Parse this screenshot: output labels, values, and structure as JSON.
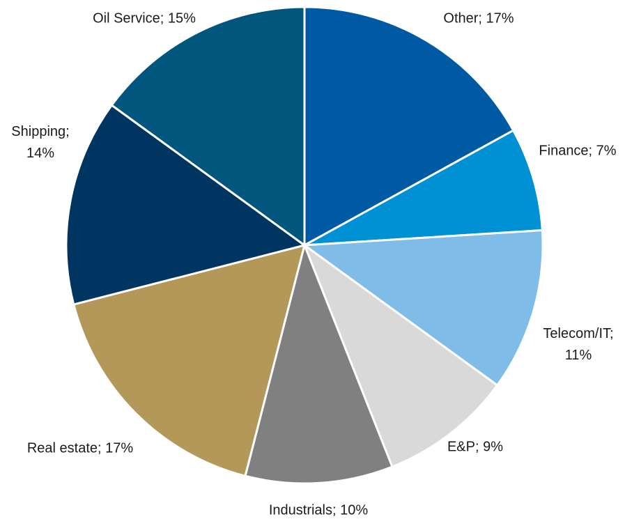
{
  "chart_data": {
    "type": "pie",
    "values": [
      17,
      7,
      11,
      9,
      10,
      17,
      14,
      15
    ],
    "value_labels": [
      "Other; 17%",
      "Finance; 7%",
      "Telecom/IT; 11%",
      "E&P; 9%",
      "Industrials; 10%",
      "Real estate; 17%",
      "Shipping; 14%",
      "Oil Service; 15%"
    ],
    "colors": [
      "#005aa3",
      "#0090d4",
      "#7fbde8",
      "#d9d9d9",
      "#808080",
      "#b4985a",
      "#003562",
      "#00567d"
    ]
  }
}
